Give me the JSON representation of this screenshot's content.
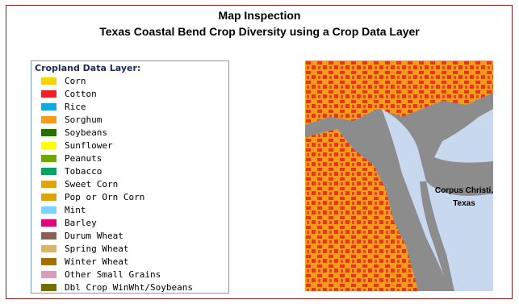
{
  "header": {
    "title": "Map Inspection",
    "subtitle": "Texas Coastal Bend Crop Diversity using a Crop Data Layer"
  },
  "legend": {
    "title": "Cropland Data Layer:",
    "items": [
      {
        "label": "Corn",
        "color": "#f5d400"
      },
      {
        "label": "Cotton",
        "color": "#ee2222"
      },
      {
        "label": "Rice",
        "color": "#12a8e0"
      },
      {
        "label": "Sorghum",
        "color": "#f79b1c"
      },
      {
        "label": "Soybeans",
        "color": "#267000"
      },
      {
        "label": "Sunflower",
        "color": "#ffff00"
      },
      {
        "label": "Peanuts",
        "color": "#70a800"
      },
      {
        "label": "Tobacco",
        "color": "#00a55e"
      },
      {
        "label": "Sweet Corn",
        "color": "#dda50a"
      },
      {
        "label": "Pop or Orn Corn",
        "color": "#dda50a"
      },
      {
        "label": "Mint",
        "color": "#7cd3ff"
      },
      {
        "label": "Barley",
        "color": "#e2007c"
      },
      {
        "label": "Durum Wheat",
        "color": "#896054"
      },
      {
        "label": "Spring Wheat",
        "color": "#d8b56b"
      },
      {
        "label": "Winter Wheat",
        "color": "#a57000"
      },
      {
        "label": "Other Small Grains",
        "color": "#d69ebc"
      },
      {
        "label": "Dbl Crop WinWht/Soybeans",
        "color": "#707000"
      }
    ]
  },
  "map": {
    "label_line1": "Corpus Christi,",
    "label_line2": "Texas"
  }
}
